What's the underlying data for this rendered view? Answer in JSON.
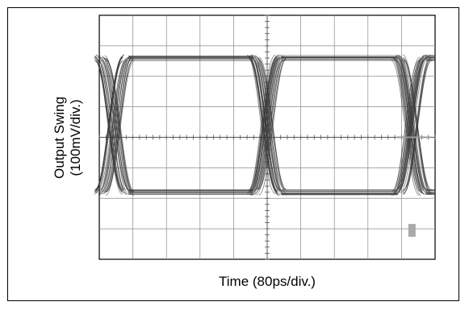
{
  "chart_data": {
    "type": "eye-diagram",
    "xlabel": "Time (80ps/div.)",
    "ylabel": [
      "Output Swing",
      "(100mV/div.)"
    ],
    "x_divisions": 10,
    "y_divisions": 8,
    "x_unit_per_div": "80ps",
    "y_unit_per_div": "100mV",
    "grid": true,
    "eye": {
      "high_level_div": 6.6,
      "low_level_div": 2.2,
      "crossing_points_div": [
        0.45,
        5.0,
        9.3
      ],
      "crossing_level_div": 4.0
    },
    "colors": {
      "trace": "#3a3a3a",
      "grid": "#8a8a8a",
      "border": "#000000"
    }
  }
}
